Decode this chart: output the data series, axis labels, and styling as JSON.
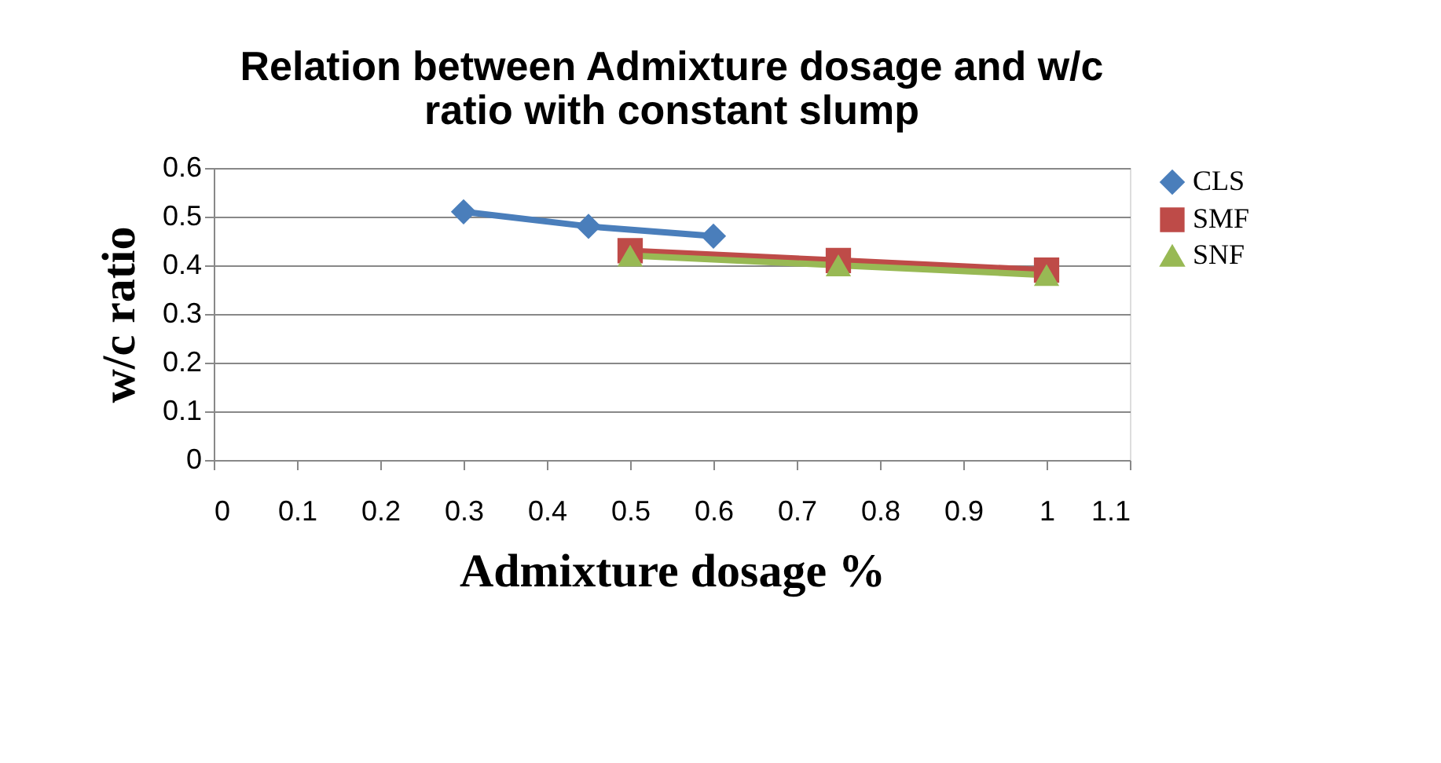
{
  "chart_data": {
    "type": "line",
    "title": [
      "Relation between Admixture dosage and w/c",
      "ratio with constant slump"
    ],
    "xlabel": "Admixture dosage %",
    "ylabel": "w/c ratio",
    "series": [
      {
        "name": "CLS",
        "color": "#4a7ebb",
        "marker": "diamond",
        "x": [
          0.3,
          0.45,
          0.6
        ],
        "values": [
          0.51,
          0.48,
          0.46
        ]
      },
      {
        "name": "SMF",
        "color": "#be4b48",
        "marker": "square",
        "x": [
          0.5,
          0.75,
          1.0
        ],
        "values": [
          0.43,
          0.41,
          0.39
        ]
      },
      {
        "name": "SNF",
        "color": "#98b954",
        "marker": "triangle",
        "x": [
          0.5,
          0.75,
          1.0
        ],
        "values": [
          0.42,
          0.4,
          0.38
        ]
      }
    ],
    "xlim": [
      0,
      1.1
    ],
    "xticks": [
      0,
      0.1,
      0.2,
      0.3,
      0.4,
      0.5,
      0.6,
      0.7,
      0.8,
      0.9,
      1,
      1.1
    ],
    "ylim": [
      0,
      0.6
    ],
    "yticks": [
      0,
      0.1,
      0.2,
      0.3,
      0.4,
      0.5,
      0.6
    ],
    "grid": "y",
    "legend": "right",
    "line_style": "solid"
  }
}
